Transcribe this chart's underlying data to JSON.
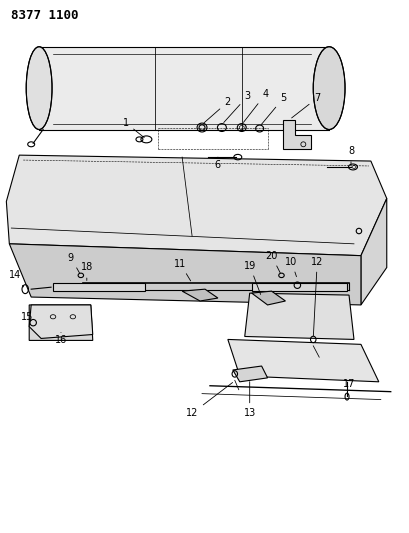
{
  "title": "8377 1100",
  "bg_color": "#ffffff",
  "line_color": "#000000",
  "fig_width": 4.1,
  "fig_height": 5.33,
  "dpi": 100
}
